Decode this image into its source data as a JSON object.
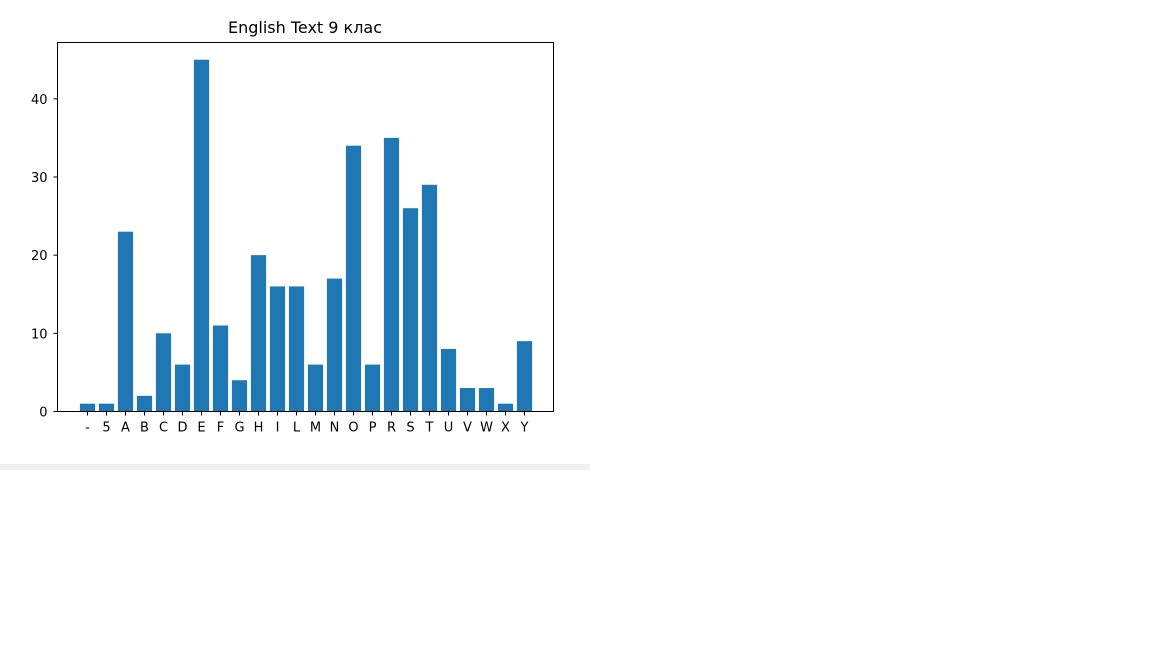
{
  "chart_data": {
    "type": "bar",
    "title": "English Text 9 клас",
    "xlabel": "",
    "ylabel": "",
    "categories": [
      "-",
      "5",
      "A",
      "B",
      "C",
      "D",
      "E",
      "F",
      "G",
      "H",
      "I",
      "L",
      "M",
      "N",
      "O",
      "P",
      "R",
      "S",
      "T",
      "U",
      "V",
      "W",
      "X",
      "Y"
    ],
    "values": [
      1,
      1,
      23,
      2,
      10,
      6,
      45,
      11,
      4,
      20,
      16,
      16,
      6,
      17,
      34,
      6,
      35,
      26,
      29,
      8,
      3,
      3,
      1,
      9
    ],
    "ylim": [
      0,
      47.2
    ],
    "yticks": [
      "0",
      "10",
      "20",
      "30",
      "40"
    ],
    "bar_color": "#1f77b4",
    "grid": false,
    "legend": "none"
  }
}
